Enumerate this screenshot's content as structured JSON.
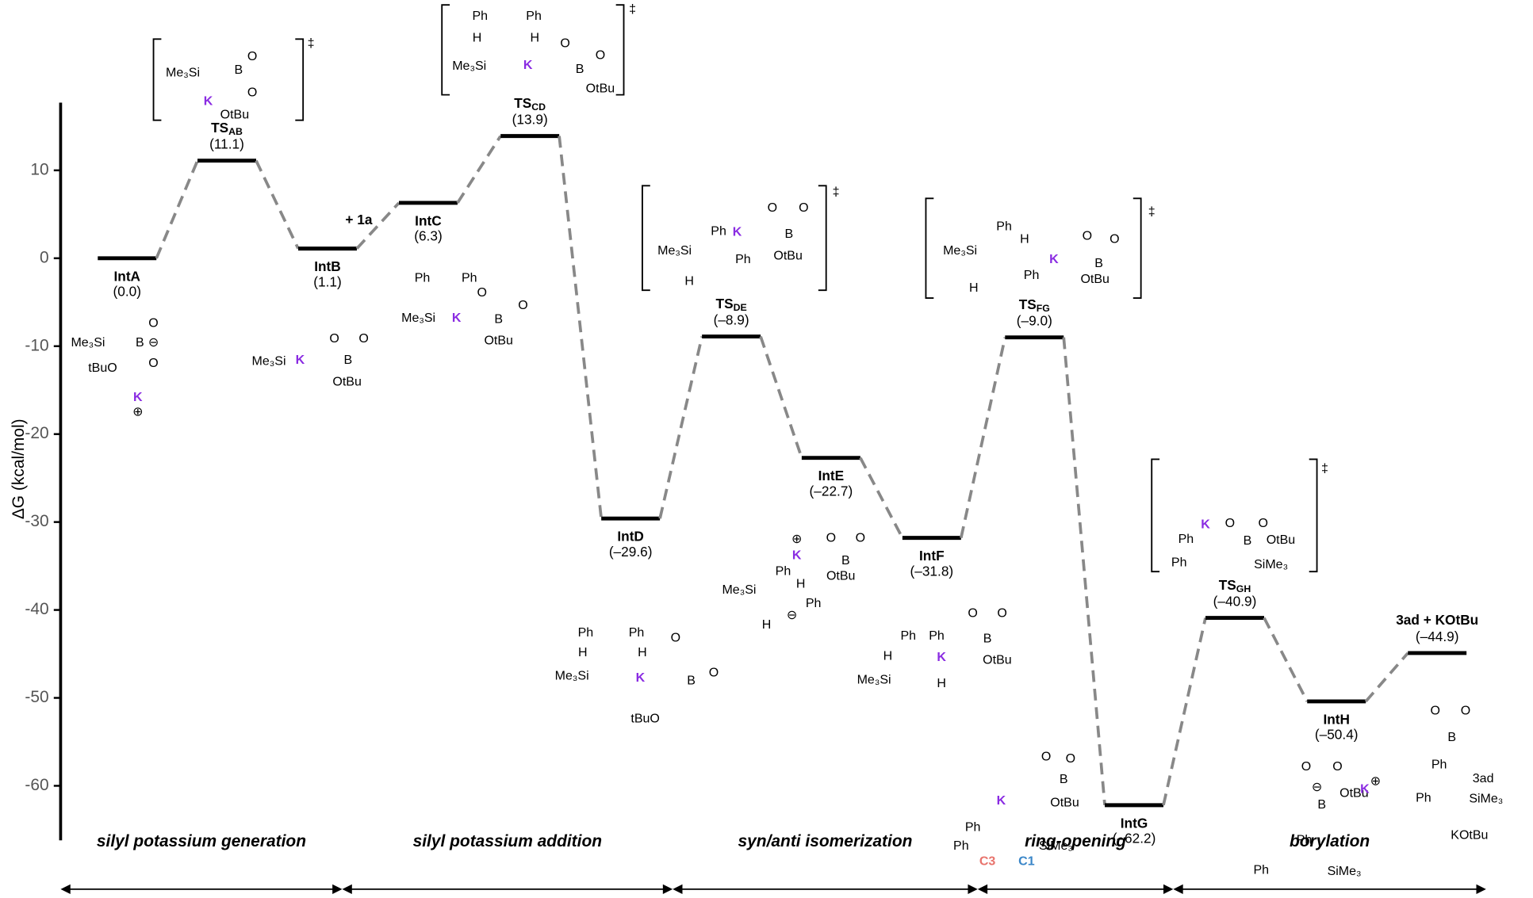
{
  "chart_data": {
    "type": "energy_profile",
    "y_label": "ΔG (kcal/mol)",
    "ylim": [
      -66.2,
      17.7
    ],
    "yticks": [
      10,
      0,
      -10,
      -20,
      -30,
      -40,
      -50,
      -60
    ],
    "categories": [
      "IntA",
      "TS",
      "IntB",
      "IntC",
      "TS",
      "IntD",
      "TS",
      "IntE",
      "IntF",
      "TS",
      "IntG",
      "TS",
      "IntH",
      "3ad + KOtBu"
    ],
    "category_subscripts": [
      null,
      "AB",
      null,
      null,
      "CD",
      null,
      "DE",
      null,
      null,
      "FG",
      null,
      "GH",
      null,
      null
    ],
    "values": [
      0.0,
      11.1,
      1.1,
      6.3,
      13.9,
      -29.6,
      -8.9,
      -22.7,
      -31.8,
      -9.0,
      -62.2,
      -40.9,
      -50.4,
      -44.9
    ],
    "value_labels": [
      "(0.0)",
      "(11.1)",
      "(1.1)",
      "(6.3)",
      "(13.9)",
      "(–29.6)",
      "(–8.9)",
      "(–22.7)",
      "(–31.8)",
      "(–9.0)",
      "(–62.2)",
      "(–40.9)",
      "(–50.4)",
      "(–44.9)"
    ],
    "level_color": "#000000",
    "connector_color": "#888888",
    "annotation": "+ 1a",
    "stages": [
      "silyl potassium generation",
      "silyl potassium addition",
      "syn/anti isomerization",
      "ring-opening",
      "borylation"
    ],
    "potassium_color": "#8a2be2",
    "c3_color": "#e8736c",
    "c1_color": "#3a86c8",
    "structures": [
      [
        "Me₃Si",
        "B",
        "⊖",
        "O",
        "O",
        "tBuO",
        "K",
        "⊕"
      ],
      [
        "Me₃Si",
        "B",
        "O",
        "O",
        "K",
        "OtBu",
        "‡"
      ],
      [
        "Me₃Si",
        "K",
        "O",
        "B",
        "O",
        "OtBu"
      ],
      [
        "Ph",
        "Ph",
        "Me₃Si",
        "K",
        "O",
        "B",
        "O",
        "OtBu"
      ],
      [
        "Ph",
        "Ph",
        "H",
        "H",
        "Me₃Si",
        "K",
        "O",
        "B",
        "O",
        "OtBu",
        "‡"
      ],
      [
        "Ph",
        "Ph",
        "H",
        "H",
        "Me₃Si",
        "K",
        "O",
        "B",
        "O",
        "tBuO"
      ],
      [
        "Me₃Si",
        "Ph",
        "K",
        "O",
        "B",
        "O",
        "OtBu",
        "Ph",
        "H",
        "‡"
      ],
      [
        "⊕",
        "K",
        "O",
        "B",
        "O",
        "OtBu",
        "Ph",
        "Me₃Si",
        "H",
        "⊖",
        "Ph",
        "H"
      ],
      [
        "Ph",
        "Ph",
        "H",
        "K",
        "O",
        "B",
        "O",
        "OtBu",
        "Me₃Si",
        "H"
      ],
      [
        "Me₃Si",
        "Ph",
        "H",
        "K",
        "O",
        "B",
        "O",
        "Ph",
        "OtBu",
        "H",
        "‡"
      ],
      [
        "O",
        "O",
        "B",
        "K",
        "OtBu",
        "Ph",
        "Ph",
        "SiMe₃",
        "C3",
        "C1"
      ],
      [
        "K",
        "O",
        "B",
        "O",
        "OtBu",
        "Ph",
        "Ph",
        "SiMe₃",
        "‡"
      ],
      [
        "O",
        "O",
        "⊖",
        "B",
        "OtBu",
        "Ph",
        "Ph",
        "SiMe₃",
        "K",
        "⊕"
      ],
      [
        "O",
        "O",
        "B",
        "Ph",
        "Ph",
        "SiMe₃",
        "3ad",
        "KOtBu"
      ]
    ]
  }
}
